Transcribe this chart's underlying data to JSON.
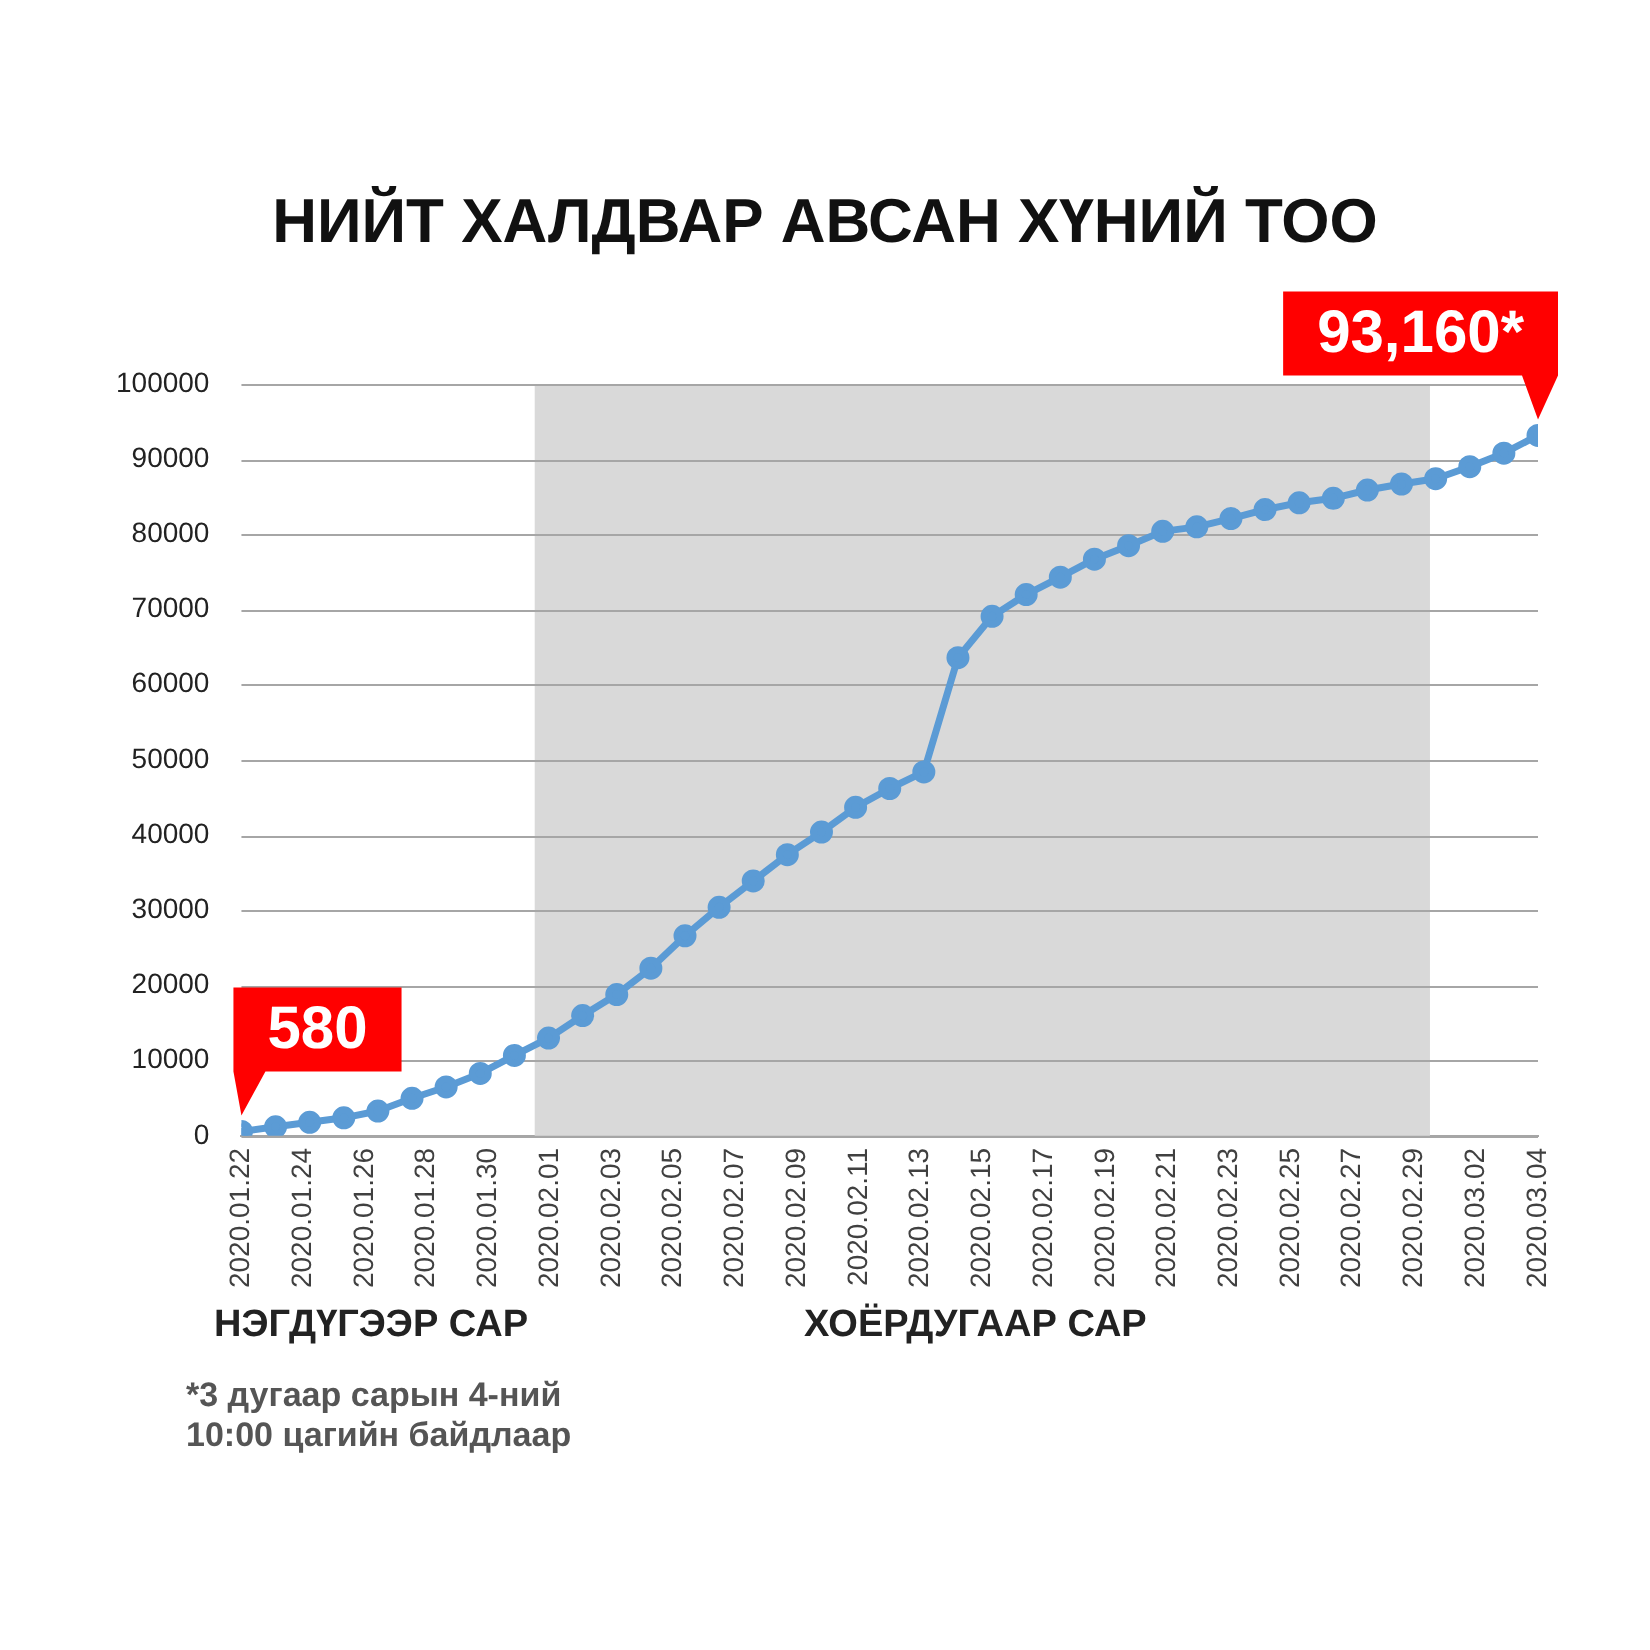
{
  "chart_data": {
    "type": "line",
    "title": "НИЙТ ХАЛДВАР АВСАН ХҮНИЙ ТОО",
    "x": [
      "2020-01-22",
      "2020-01-23T02:32",
      "2020-01-24T05:03",
      "2020-01-25T07:35",
      "2020-01-26T10:06",
      "2020-01-27T12:38",
      "2020-01-28T15:09",
      "2020-01-29T17:41",
      "2020-01-30T20:13",
      "2020-01-31T22:44",
      "2020-02-02T01:16",
      "2020-02-03T03:47",
      "2020-02-04T06:19",
      "2020-02-05T08:51",
      "2020-02-06T11:22",
      "2020-02-07T13:54",
      "2020-02-08T16:25",
      "2020-02-09T18:57",
      "2020-02-10T21:28",
      "2020-02-12",
      "2020-02-13T02:32",
      "2020-02-14T05:03",
      "2020-02-15T07:35",
      "2020-02-16T10:06",
      "2020-02-17T12:38",
      "2020-02-18T15:09",
      "2020-02-19T17:41",
      "2020-02-20T20:13",
      "2020-02-21T22:44",
      "2020-02-23T01:16",
      "2020-02-24T03:47",
      "2020-02-25T06:19",
      "2020-02-26T08:51",
      "2020-02-27T11:22",
      "2020-02-28T13:54",
      "2020-02-29T16:25",
      "2020-03-01T18:57",
      "2020-03-02T21:28",
      "2020-03-04"
    ],
    "series": [
      {
        "color": "#5b9bd5",
        "values": [
          580,
          1200,
          1800,
          2400,
          3300,
          5000,
          6500,
          8300,
          10700,
          13000,
          16000,
          18800,
          22300,
          26600,
          30400,
          33900,
          37400,
          40400,
          43700,
          46200,
          48400,
          63600,
          69100,
          72000,
          74300,
          76700,
          78500,
          80400,
          81000,
          82100,
          83300,
          84200,
          84800,
          85900,
          86700,
          87400,
          89000,
          90800,
          93160
        ],
        "value_labels": [
          "580",
          null,
          null,
          null,
          null,
          null,
          null,
          null,
          null,
          null,
          null,
          null,
          null,
          null,
          null,
          null,
          null,
          null,
          null,
          null,
          null,
          null,
          null,
          null,
          null,
          null,
          null,
          null,
          null,
          null,
          null,
          null,
          null,
          null,
          null,
          null,
          null,
          null,
          "93,160*"
        ]
      }
    ],
    "xlim": [
      "2020-01-22",
      "2020-03-04"
    ],
    "xticks": [
      {
        "value": "2020-01-22",
        "label": "2020.01.22"
      },
      {
        "value": "2020-01-24",
        "label": "2020.01.24"
      },
      {
        "value": "2020-01-26",
        "label": "2020.01.26"
      },
      {
        "value": "2020-01-28",
        "label": "2020.01.28"
      },
      {
        "value": "2020-01-30",
        "label": "2020.01.30"
      },
      {
        "value": "2020-02-01",
        "label": "2020.02.01"
      },
      {
        "value": "2020-02-03",
        "label": "2020.02.03"
      },
      {
        "value": "2020-02-05",
        "label": "2020.02.05"
      },
      {
        "value": "2020-02-07",
        "label": "2020.02.07"
      },
      {
        "value": "2020-02-09",
        "label": "2020.02.09"
      },
      {
        "value": "2020-02-11",
        "label": "2020.02.11"
      },
      {
        "value": "2020-02-13",
        "label": "2020.02.13"
      },
      {
        "value": "2020-02-15",
        "label": "2020.02.15"
      },
      {
        "value": "2020-02-17",
        "label": "2020.02.17"
      },
      {
        "value": "2020-02-19",
        "label": "2020.02.19"
      },
      {
        "value": "2020-02-21",
        "label": "2020.02.21"
      },
      {
        "value": "2020-02-23",
        "label": "2020.02.23"
      },
      {
        "value": "2020-02-25",
        "label": "2020.02.25"
      },
      {
        "value": "2020-02-27",
        "label": "2020.02.27"
      },
      {
        "value": "2020-02-29",
        "label": "2020.02.29"
      },
      {
        "value": "2020-03-02",
        "label": "2020.03.02"
      },
      {
        "value": "2020-03-04",
        "label": "2020.03.04"
      }
    ],
    "ylim": [
      0,
      100000
    ],
    "yticks": [
      0,
      10000,
      20000,
      30000,
      40000,
      50000,
      60000,
      70000,
      80000,
      90000,
      100000
    ],
    "bands": [
      {
        "axis": "x",
        "from": "2020-01-31T12:00",
        "to": "2020-02-29T12:00",
        "color": "#d9d9d9"
      }
    ],
    "grid": "y",
    "legend": false,
    "marker": "circle",
    "line_style": "solid",
    "annotations": [
      "НЭГДҮГЭЭР САР",
      "ХОЁРДУГААР САР",
      "*3 дугаар сарын 4-ний\n10:00 цагийн байдлаар"
    ]
  }
}
